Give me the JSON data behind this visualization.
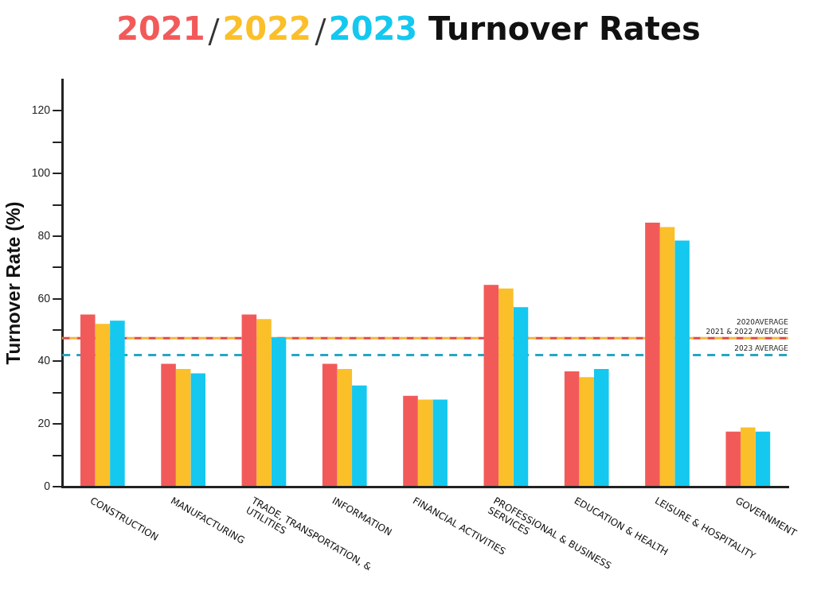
{
  "chart_data": {
    "type": "bar",
    "title": "Turnover Rates",
    "ylabel": "Turnover Rate (%)",
    "categories": [
      "CONSTRUCTION",
      "MANUFACTURING",
      "TRADE, TRANSPORTATION, & UTILITIES",
      "INFORMATION",
      "FINANCIAL ACTIVITIES",
      "PROFESSIONAL & BUSINESS SERVICES",
      "EDUCATION & HEALTH",
      "LEISURE & HOSPITALITY",
      "GOVERNMENT"
    ],
    "series": [
      {
        "name": "2021",
        "color": "#f25a5a",
        "values": [
          55,
          39.2,
          55,
          39.2,
          29,
          64.4,
          36.8,
          84.3,
          17.6
        ]
      },
      {
        "name": "2022",
        "color": "#fbbf2a",
        "values": [
          52,
          37.6,
          53.5,
          37.6,
          27.8,
          63.3,
          35,
          82.9,
          18.9
        ]
      },
      {
        "name": "2023",
        "color": "#14c8f0",
        "values": [
          53,
          36.2,
          47.7,
          32.3,
          27.8,
          57.3,
          37.6,
          78.6,
          17.6
        ]
      }
    ],
    "ylim": [
      0,
      130
    ],
    "yticks": [
      0,
      {
        "value": 10,
        "label": null
      },
      20,
      {
        "value": 30,
        "label": null
      },
      40,
      {
        "value": 50,
        "label": null
      },
      60,
      {
        "value": 70,
        "label": null
      },
      80,
      {
        "value": 90,
        "label": null
      },
      100,
      {
        "value": 110,
        "label": null
      },
      120
    ],
    "ref_lines": [
      {
        "axis": "y",
        "value": 47.4,
        "label": "2020AVERAGE",
        "color": "#e04848",
        "line_style": "dashed"
      },
      {
        "axis": "y",
        "value": 47.4,
        "label": "2021 & 2022 AVERAGE",
        "color": "#f5b540",
        "line_style": "dashed"
      },
      {
        "axis": "y",
        "value": 42,
        "label": "2023 AVERAGE",
        "color": "#26a6c2",
        "line_style": "dashed"
      }
    ],
    "grid": false,
    "legend": "top"
  }
}
